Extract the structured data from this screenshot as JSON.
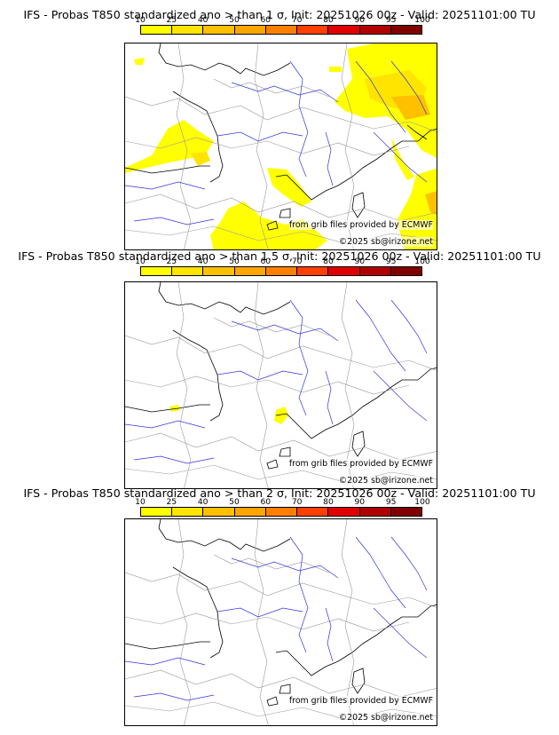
{
  "page": {
    "background": "#ffffff"
  },
  "colorbar": {
    "ticks": [
      "10",
      "25",
      "40",
      "50",
      "60",
      "70",
      "80",
      "90",
      "95",
      "100"
    ],
    "colors": [
      "#ffff00",
      "#ffe400",
      "#ffc000",
      "#ffa500",
      "#ff8000",
      "#ff4000",
      "#e00000",
      "#b00000",
      "#800000"
    ]
  },
  "panels": [
    {
      "title": "IFS - Probas T850  standardized ano > than 1 σ, Init: 20251026 00z - Valid: 20251101:00 TU",
      "credit": "from grib files provided by ECMWF",
      "copyright": "©2025 sb@irizone.net"
    },
    {
      "title": "IFS - Probas T850  standardized ano > than 1.5 σ, Init: 20251026 00z - Valid: 20251101:00 TU",
      "credit": "from grib files provided by ECMWF",
      "copyright": "©2025 sb@irizone.net"
    },
    {
      "title": "IFS - Probas T850  standardized ano > than 2 σ, Init: 20251026 00z - Valid: 20251101:00 TU",
      "credit": "from grib files provided by ECMWF",
      "copyright": "©2025 sb@irizone.net"
    }
  ]
}
